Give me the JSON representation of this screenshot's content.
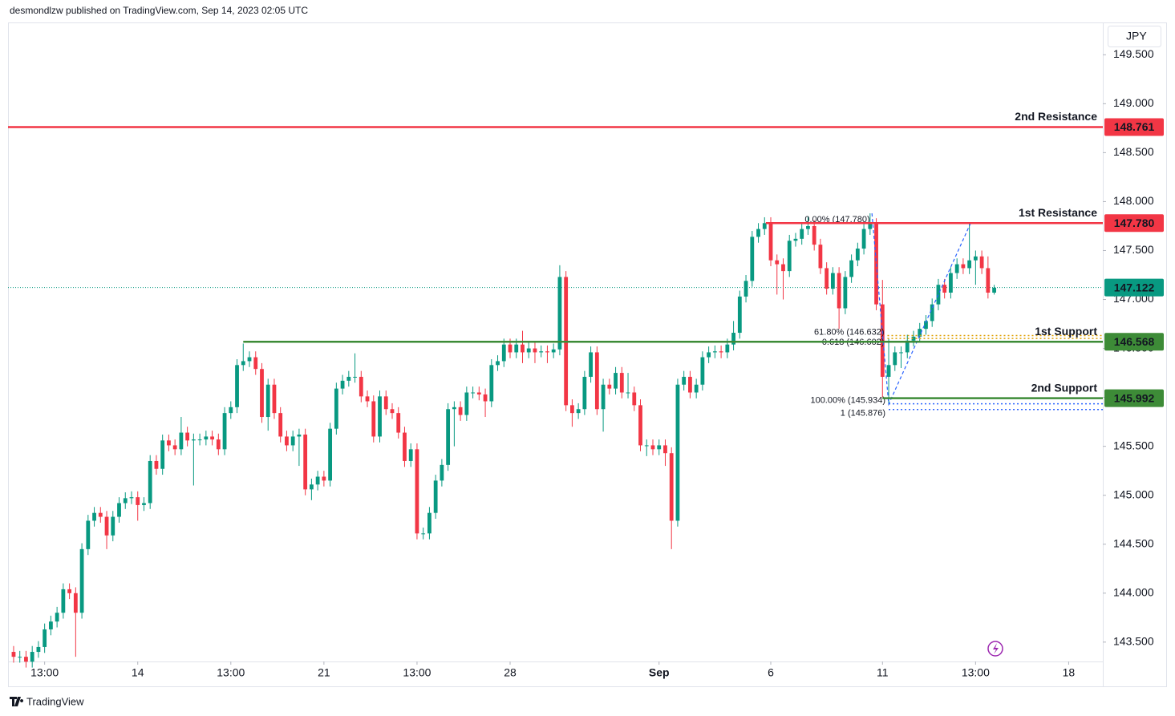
{
  "header": {
    "text": "desmondlzw published on TradingView.com, Sep 14, 2023 02:05 UTC"
  },
  "footer": {
    "brand": "TradingView"
  },
  "chart_data": {
    "type": "candlestick",
    "currency": "JPY",
    "up_color": "#089981",
    "down_color": "#f23645",
    "xlim": [
      -0.9,
      175.5
    ],
    "ylim": [
      143.04,
      149.83
    ],
    "xticks": [
      {
        "value": 5,
        "label": "13:00"
      },
      {
        "value": 20,
        "label": "14"
      },
      {
        "value": 35,
        "label": "13:00"
      },
      {
        "value": 50,
        "label": "21"
      },
      {
        "value": 65,
        "label": "13:00"
      },
      {
        "value": 80,
        "label": "28"
      },
      {
        "value": 104,
        "label": "Sep"
      },
      {
        "value": 122,
        "label": "6"
      },
      {
        "value": 140,
        "label": "11"
      },
      {
        "value": 155,
        "label": "13:00"
      },
      {
        "value": 170,
        "label": "18"
      }
    ],
    "yticks": [
      {
        "value": 143.5,
        "label": "143.500"
      },
      {
        "value": 144,
        "label": "144.000"
      },
      {
        "value": 144.5,
        "label": "144.500"
      },
      {
        "value": 145,
        "label": "145.000"
      },
      {
        "value": 145.5,
        "label": "145.500"
      },
      {
        "value": 146,
        "label": "146.000"
      },
      {
        "value": 146.5,
        "label": "146.500"
      },
      {
        "value": 147,
        "label": "147.000"
      },
      {
        "value": 147.5,
        "label": "147.500"
      },
      {
        "value": 148,
        "label": "148.000"
      },
      {
        "value": 148.5,
        "label": "148.500"
      },
      {
        "value": 149,
        "label": "149.000"
      },
      {
        "value": 149.5,
        "label": "149.500"
      }
    ],
    "open": [
      143.4,
      143.35,
      143.35,
      143.3,
      143.4,
      143.45,
      143.63,
      143.71,
      143.8,
      144.04,
      144.0,
      143.8,
      144.45,
      144.74,
      144.82,
      144.78,
      144.59,
      144.78,
      144.92,
      144.97,
      144.98,
      144.9,
      144.92,
      145.35,
      145.27,
      145.56,
      145.51,
      145.47,
      145.64,
      145.56,
      145.57,
      145.57,
      145.6,
      145.57,
      145.47,
      145.84,
      145.9,
      146.33,
      146.37,
      146.41,
      146.29,
      145.8,
      146.13,
      145.84,
      145.6,
      145.51,
      145.6,
      145.62,
      145.06,
      145.11,
      145.19,
      145.15,
      145.68,
      146.09,
      146.17,
      146.21,
      146.21,
      146.01,
      145.96,
      145.6,
      146.01,
      145.88,
      145.84,
      145.64,
      145.35,
      145.47,
      144.61,
      144.61,
      144.82,
      145.15,
      145.31,
      145.88,
      145.9,
      145.82,
      146.05,
      146.05,
      146.03,
      145.96,
      146.33,
      146.37,
      146.54,
      146.46,
      146.54,
      146.46,
      146.5,
      146.46,
      146.47,
      146.46,
      146.49,
      147.23,
      145.92,
      145.84,
      145.88,
      146.21,
      146.46,
      145.88,
      146.13,
      146.09,
      146.25,
      146.05,
      146.05,
      145.92,
      145.51,
      145.51,
      145.47,
      145.51,
      145.43,
      144.74,
      146.13,
      146.21,
      146.05,
      146.13,
      146.41,
      146.46,
      146.47,
      146.46,
      146.54,
      146.66,
      147.03,
      147.19,
      147.64,
      147.72,
      147.78,
      147.4,
      147.36,
      147.29,
      147.6,
      147.62,
      147.72,
      147.75,
      147.56,
      147.32,
      147.11,
      147.27,
      146.91,
      147.23,
      147.4,
      147.52,
      147.72,
      147.77,
      146.95,
      146.21,
      146.33,
      146.46,
      146.46,
      146.58,
      146.62,
      146.7,
      146.78,
      146.95,
      147.15,
      147.07,
      147.27,
      147.36,
      147.32,
      147.4,
      147.44,
      147.32,
      147.07
    ],
    "high": [
      143.46,
      143.41,
      143.41,
      143.46,
      143.51,
      143.69,
      143.77,
      143.86,
      144.1,
      144.1,
      144.06,
      144.51,
      144.8,
      144.88,
      144.88,
      144.84,
      144.84,
      144.98,
      145.03,
      145.04,
      145.04,
      144.98,
      145.41,
      145.41,
      145.62,
      145.62,
      145.57,
      145.8,
      145.7,
      145.63,
      145.63,
      145.66,
      145.66,
      145.63,
      145.9,
      145.96,
      146.39,
      146.55,
      146.47,
      146.47,
      146.35,
      146.19,
      146.19,
      145.9,
      145.66,
      145.66,
      145.68,
      145.68,
      145.17,
      145.25,
      145.25,
      145.74,
      146.15,
      146.23,
      146.27,
      146.45,
      146.27,
      146.07,
      146.02,
      146.07,
      146.07,
      145.94,
      145.9,
      145.7,
      145.53,
      145.53,
      144.67,
      144.88,
      145.21,
      145.37,
      145.94,
      145.96,
      145.96,
      146.11,
      146.11,
      146.11,
      146.09,
      146.39,
      146.43,
      146.6,
      146.6,
      146.6,
      146.68,
      146.56,
      146.56,
      146.53,
      146.53,
      146.55,
      147.35,
      147.29,
      145.98,
      145.94,
      146.27,
      146.52,
      146.52,
      146.19,
      146.19,
      146.31,
      146.31,
      146.25,
      146.11,
      145.98,
      145.57,
      145.57,
      145.57,
      145.57,
      145.49,
      146.19,
      146.27,
      146.27,
      146.19,
      146.47,
      146.52,
      146.53,
      146.53,
      146.6,
      146.78,
      147.09,
      147.25,
      147.7,
      147.78,
      147.84,
      147.84,
      147.46,
      147.42,
      147.66,
      147.68,
      147.78,
      147.85,
      147.81,
      147.62,
      147.38,
      147.33,
      147.33,
      147.29,
      147.46,
      147.58,
      147.78,
      147.88,
      147.83,
      147.2,
      146.6,
      146.52,
      146.52,
      146.64,
      146.68,
      146.76,
      146.84,
      147.01,
      147.21,
      147.21,
      147.33,
      147.42,
      147.42,
      147.78,
      147.5,
      147.5,
      147.44,
      147.15
    ],
    "low": [
      143.29,
      143.29,
      143.24,
      143.24,
      143.34,
      143.39,
      143.57,
      143.65,
      143.74,
      143.94,
      143.35,
      143.74,
      144.39,
      144.68,
      144.72,
      144.45,
      144.53,
      144.72,
      144.86,
      144.91,
      144.74,
      144.84,
      144.86,
      145.21,
      145.21,
      145.45,
      145.41,
      145.41,
      145.5,
      145.1,
      145.51,
      145.51,
      145.51,
      145.41,
      145.41,
      145.78,
      145.84,
      146.27,
      146.31,
      146.23,
      145.74,
      145.66,
      145.78,
      145.54,
      145.45,
      145.45,
      145.3,
      145.0,
      144.95,
      145.05,
      145.09,
      145.09,
      145.62,
      146.03,
      146.11,
      146.15,
      145.95,
      145.9,
      145.54,
      145.54,
      145.82,
      145.78,
      145.58,
      145.29,
      145.29,
      144.55,
      144.55,
      144.55,
      144.76,
      145.09,
      145.25,
      145.5,
      145.76,
      145.76,
      145.99,
      145.97,
      145.8,
      145.9,
      146.27,
      146.31,
      146.4,
      146.4,
      146.35,
      146.4,
      146.35,
      146.41,
      146.35,
      146.4,
      146.43,
      145.86,
      145.7,
      145.78,
      145.82,
      146.15,
      145.82,
      145.65,
      146.03,
      146.03,
      145.99,
      145.99,
      145.86,
      145.45,
      145.4,
      145.41,
      145.41,
      145.3,
      144.45,
      144.68,
      146.07,
      145.99,
      145.99,
      146.07,
      146.35,
      146.4,
      146.4,
      146.4,
      146.48,
      146.6,
      146.97,
      147.13,
      147.58,
      147.66,
      147.34,
      147.05,
      147.0,
      147.23,
      147.54,
      147.56,
      147.66,
      147.5,
      147.26,
      147.05,
      147.05,
      146.7,
      146.85,
      147.17,
      147.34,
      147.46,
      147.66,
      146.89,
      146.0,
      145.93,
      146.27,
      146.3,
      146.4,
      146.52,
      146.56,
      146.64,
      146.72,
      146.89,
      147.01,
      147.01,
      147.21,
      147.26,
      147.26,
      147.15,
      147.26,
      147.01,
      147.05
    ],
    "close": [
      143.35,
      143.35,
      143.3,
      143.4,
      143.45,
      143.63,
      143.71,
      143.8,
      144.04,
      144.0,
      143.8,
      144.45,
      144.74,
      144.82,
      144.78,
      144.59,
      144.78,
      144.92,
      144.97,
      144.98,
      144.9,
      144.92,
      145.35,
      145.27,
      145.56,
      145.51,
      145.47,
      145.64,
      145.56,
      145.57,
      145.57,
      145.6,
      145.57,
      145.47,
      145.84,
      145.9,
      146.33,
      146.37,
      146.41,
      146.29,
      145.8,
      146.13,
      145.84,
      145.6,
      145.51,
      145.6,
      145.62,
      145.06,
      145.11,
      145.19,
      145.15,
      145.68,
      146.09,
      146.17,
      146.21,
      146.21,
      146.01,
      145.96,
      145.6,
      146.01,
      145.88,
      145.84,
      145.64,
      145.35,
      145.47,
      144.61,
      144.61,
      144.82,
      145.15,
      145.31,
      145.88,
      145.9,
      145.82,
      146.05,
      146.05,
      146.03,
      145.96,
      146.33,
      146.37,
      146.54,
      146.46,
      146.54,
      146.46,
      146.5,
      146.46,
      146.47,
      146.46,
      146.49,
      147.23,
      145.92,
      145.84,
      145.88,
      146.21,
      146.46,
      145.88,
      146.13,
      146.09,
      146.25,
      146.05,
      146.05,
      145.92,
      145.51,
      145.51,
      145.47,
      145.51,
      145.43,
      144.74,
      146.13,
      146.21,
      146.05,
      146.13,
      146.41,
      146.46,
      146.47,
      146.46,
      146.54,
      146.66,
      147.03,
      147.19,
      147.64,
      147.72,
      147.78,
      147.4,
      147.36,
      147.29,
      147.6,
      147.62,
      147.72,
      147.75,
      147.56,
      147.32,
      147.11,
      147.27,
      146.91,
      147.23,
      147.4,
      147.52,
      147.72,
      147.77,
      146.95,
      146.21,
      146.33,
      146.46,
      146.46,
      146.58,
      146.62,
      146.7,
      146.78,
      146.95,
      147.15,
      147.07,
      147.27,
      147.36,
      147.32,
      147.4,
      147.44,
      147.32,
      147.07,
      147.12
    ],
    "current_price": {
      "value": 147.122,
      "color": "#089981"
    },
    "levels": [
      {
        "label": "2nd Resistance",
        "value": 148.761,
        "color": "#f23645",
        "start": null
      },
      {
        "label": "1st Resistance",
        "value": 147.78,
        "value_label": "147.780",
        "color": "#f23645",
        "start": 121.2
      },
      {
        "label": "1st Support",
        "value": 146.568,
        "color": "#3d8b37",
        "start": 37
      },
      {
        "label": "2nd Support",
        "value": 145.992,
        "color": "#3d8b37",
        "start": 140
      }
    ],
    "fib": [
      {
        "label": "0.00% (147.780)",
        "value": 147.78,
        "color": "#2962ff",
        "start": 138.5
      },
      {
        "label": "61.80% (146.632)",
        "value": 146.632,
        "color": "#e0a000",
        "start": 140.8
      },
      {
        "label": "0.618 (146.602)",
        "value": 146.602,
        "color": "#e0a000",
        "start": 140.8
      },
      {
        "label": "100.00% (145.934)",
        "value": 145.934,
        "color": "#2962ff",
        "start": 141
      },
      {
        "label": "1 (145.876)",
        "value": 145.876,
        "color": "#2962ff",
        "start": 141
      }
    ],
    "pattern": {
      "x": [
        138.3,
        141,
        154.2
      ],
      "y": [
        147.88,
        145.93,
        147.78
      ],
      "color": "#2962ff"
    }
  }
}
